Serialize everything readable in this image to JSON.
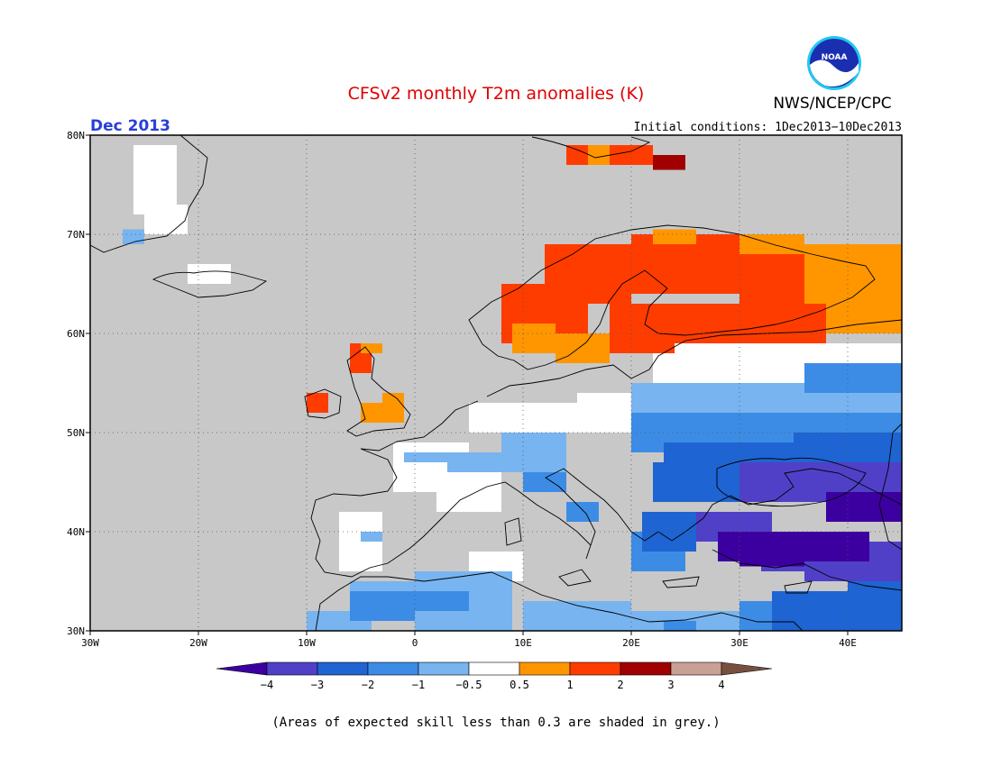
{
  "header": {
    "title": "CFSv2 monthly T2m anomalies (K)",
    "agency": "NWS/NCEP/CPC",
    "logo_text": "NOAA",
    "period": "Dec 2013",
    "initial_conditions": "Initial conditions: 1Dec2013−10Dec2013"
  },
  "map": {
    "lon_range": [
      -30,
      45
    ],
    "lat_range": [
      30,
      80
    ],
    "lat_ticks": [
      "30N",
      "40N",
      "50N",
      "60N",
      "70N",
      "80N"
    ],
    "lon_ticks": [
      "30W",
      "20W",
      "10W",
      "0",
      "10E",
      "20E",
      "30E",
      "40E"
    ],
    "background_color": "#c8c8c8",
    "gridlines": "dotted"
  },
  "legend": {
    "labels": [
      "−4",
      "−3",
      "−2",
      "−1",
      "−0.5",
      "0.5",
      "1",
      "2",
      "3",
      "4"
    ],
    "colors": [
      "#3c00a0",
      "#5040c8",
      "#1e64d2",
      "#3c8ce6",
      "#78b4f0",
      "#ffffff",
      "#ff9600",
      "#ff3c00",
      "#a00000",
      "#c8a096",
      "#785040"
    ]
  },
  "footnote": "(Areas of expected skill less than 0.3 are shaded in grey.)"
}
